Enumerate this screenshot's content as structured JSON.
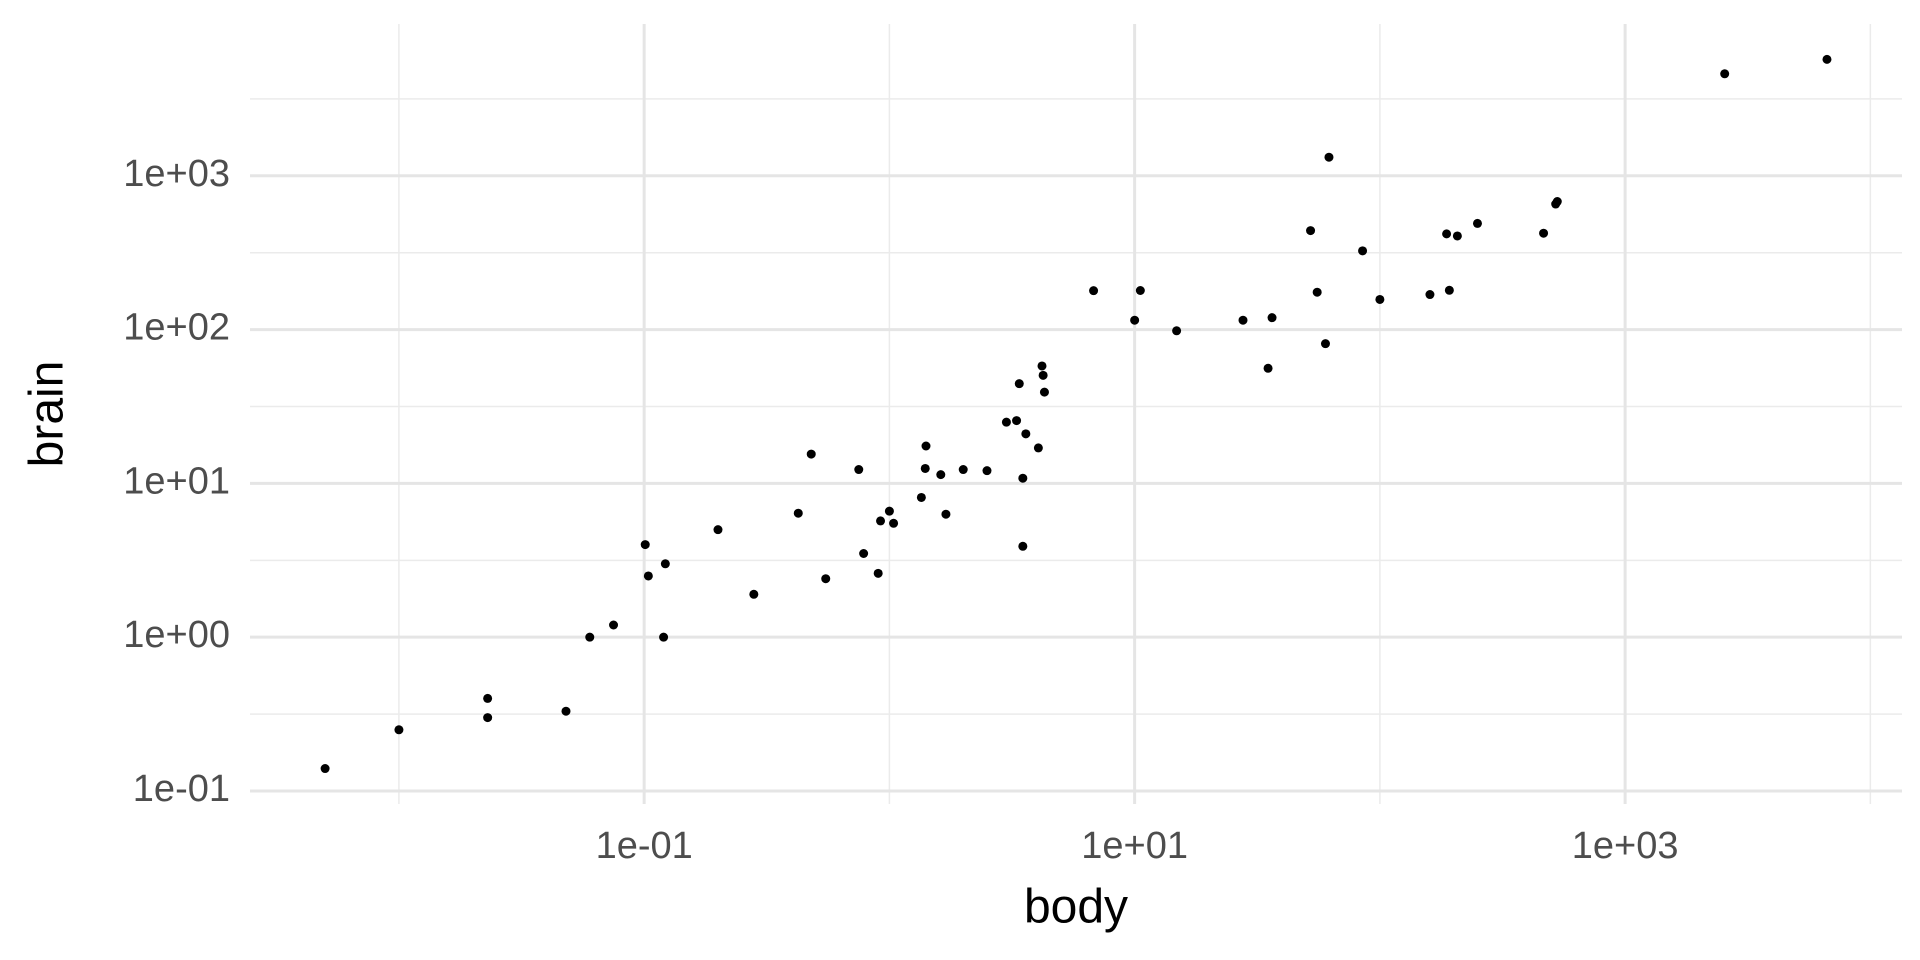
{
  "chart_data": {
    "type": "scatter",
    "x_label": "body",
    "y_label": "brain",
    "log_x": true,
    "log_y": true,
    "grid": true,
    "color": "#000000",
    "xlim": [
      0.00247,
      13460
    ],
    "ylim": [
      0.0823,
      9700
    ],
    "xticks": [
      {
        "value": 0.1,
        "label": "1e-01"
      },
      {
        "value": 10,
        "label": "1e+01"
      },
      {
        "value": 1000,
        "label": "1e+03"
      }
    ],
    "yticks": [
      {
        "value": 0.1,
        "label": "1e-01"
      },
      {
        "value": 1,
        "label": "1e+00"
      },
      {
        "value": 10,
        "label": "1e+01"
      },
      {
        "value": 100,
        "label": "1e+02"
      },
      {
        "value": 1000,
        "label": "1e+03"
      }
    ],
    "xminor": [
      0.01,
      1,
      100,
      10000
    ],
    "yminor": [
      0.316,
      3.16,
      31.6,
      316,
      3162
    ],
    "x": [
      3.385,
      0.48,
      1.35,
      465,
      36.33,
      27.66,
      14.83,
      1.04,
      4.19,
      0.425,
      0.101,
      0.92,
      1,
      0.005,
      0.06,
      3.5,
      2,
      1.7,
      2547,
      0.023,
      187.1,
      521,
      0.785,
      10,
      3.3,
      0.2,
      1.41,
      529,
      207,
      85,
      0.75,
      62,
      6654,
      3.5,
      6.8,
      35,
      4.05,
      0.12,
      0.023,
      0.01,
      1.4,
      250,
      2.5,
      55.5,
      100,
      52.16,
      10.55,
      0.55,
      60,
      3.6,
      4.288,
      0.28,
      0.075,
      0.122,
      0.048,
      192,
      3,
      160,
      0.9,
      1.62,
      0.104,
      4.235
    ],
    "values": [
      44.5,
      15.5,
      8.1,
      423,
      119.5,
      115,
      98.2,
      5.5,
      58,
      6.4,
      4,
      5.7,
      6.6,
      0.14,
      1,
      10.8,
      12.3,
      6.3,
      4603,
      0.3,
      419,
      655,
      3.5,
      115,
      25.6,
      5,
      17.5,
      680,
      406,
      325,
      12.3,
      1320,
      5712,
      3.9,
      179,
      56,
      17,
      1,
      0.4,
      0.25,
      12.5,
      490,
      12.1,
      175,
      157,
      440,
      179.5,
      2.4,
      81,
      21,
      39.2,
      1.9,
      1.2,
      3,
      0.33,
      180,
      25,
      169,
      2.6,
      11.4,
      2.5,
      50.4
    ]
  }
}
